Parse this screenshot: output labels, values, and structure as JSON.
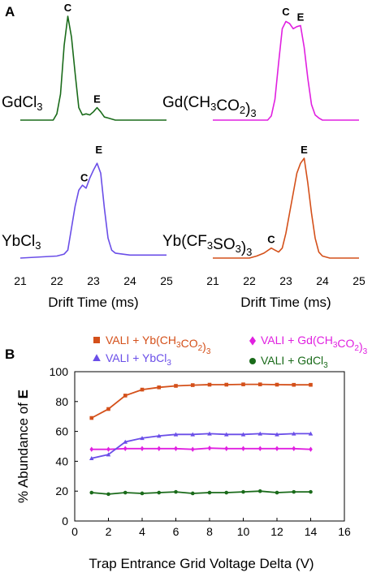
{
  "panel_a": {
    "letter": "A",
    "xaxis_title": "Drift Time (ms)",
    "xticks": [
      21,
      22,
      23,
      24,
      25
    ],
    "spectra": [
      {
        "name": "GdCl3",
        "label_parts": [
          {
            "t": "GdCl"
          },
          {
            "t": "3",
            "sub": true
          }
        ],
        "color": "#1a6b1a",
        "peaks": [
          {
            "label": "C",
            "x": 22.3,
            "y": 1.0
          },
          {
            "label": "E",
            "x": 23.1,
            "y": 0.12
          }
        ],
        "x": [
          21.0,
          21.9,
          22.0,
          22.1,
          22.2,
          22.3,
          22.4,
          22.5,
          22.6,
          22.7,
          22.8,
          22.9,
          23.0,
          23.1,
          23.2,
          23.3,
          23.4,
          23.6,
          24.0,
          25.0
        ],
        "y": [
          0.0,
          0.0,
          0.06,
          0.25,
          0.72,
          1.0,
          0.8,
          0.45,
          0.12,
          0.05,
          0.06,
          0.05,
          0.08,
          0.12,
          0.08,
          0.03,
          0.02,
          0.0,
          0.0,
          0.0
        ]
      },
      {
        "name": "Gd(CH3CO2)3",
        "label_parts": [
          {
            "t": "Gd(CH"
          },
          {
            "t": "3",
            "sub": true
          },
          {
            "t": "CO"
          },
          {
            "t": "2",
            "sub": true
          },
          {
            "t": ")"
          },
          {
            "t": "3",
            "sub": true
          }
        ],
        "color": "#e020e0",
        "peaks": [
          {
            "label": "C",
            "x": 23.0,
            "y": 0.96
          },
          {
            "label": "E",
            "x": 23.4,
            "y": 0.91
          }
        ],
        "x": [
          21.0,
          22.5,
          22.6,
          22.7,
          22.8,
          22.9,
          23.0,
          23.1,
          23.2,
          23.3,
          23.4,
          23.5,
          23.6,
          23.7,
          23.8,
          23.9,
          24.0,
          25.0
        ],
        "y": [
          0.0,
          0.0,
          0.04,
          0.2,
          0.55,
          0.88,
          0.95,
          0.93,
          0.88,
          0.9,
          0.91,
          0.7,
          0.4,
          0.15,
          0.05,
          0.02,
          0.0,
          0.0
        ]
      },
      {
        "name": "YbCl3",
        "label_parts": [
          {
            "t": "YbCl"
          },
          {
            "t": "3",
            "sub": true
          }
        ],
        "color": "#6a4ee8",
        "peaks": [
          {
            "label": "C",
            "x": 22.75,
            "y": 0.72
          },
          {
            "label": "E",
            "x": 23.15,
            "y": 1.0
          }
        ],
        "x": [
          21.0,
          22.0,
          22.2,
          22.3,
          22.4,
          22.5,
          22.6,
          22.7,
          22.8,
          22.9,
          23.0,
          23.1,
          23.2,
          23.3,
          23.4,
          23.5,
          23.6,
          24.0,
          25.0
        ],
        "y": [
          0.0,
          0.02,
          0.04,
          0.08,
          0.3,
          0.52,
          0.68,
          0.73,
          0.7,
          0.8,
          0.88,
          0.95,
          0.85,
          0.5,
          0.2,
          0.08,
          0.05,
          0.03,
          0.03
        ]
      },
      {
        "name": "Yb(CF3SO3)3",
        "label_parts": [
          {
            "t": "Yb(CF"
          },
          {
            "t": "3",
            "sub": true
          },
          {
            "t": "SO"
          },
          {
            "t": "3",
            "sub": true
          },
          {
            "t": ")"
          },
          {
            "t": "3",
            "sub": true
          }
        ],
        "color": "#d4501a",
        "peaks": [
          {
            "label": "C",
            "x": 22.6,
            "y": 0.1
          },
          {
            "label": "E",
            "x": 23.5,
            "y": 1.0
          }
        ],
        "x": [
          21.0,
          22.0,
          22.2,
          22.4,
          22.6,
          22.7,
          22.8,
          22.9,
          23.0,
          23.1,
          23.2,
          23.3,
          23.4,
          23.5,
          23.6,
          23.7,
          23.8,
          23.9,
          24.0,
          24.2,
          25.0
        ],
        "y": [
          0.0,
          0.0,
          0.02,
          0.05,
          0.1,
          0.08,
          0.06,
          0.1,
          0.25,
          0.45,
          0.65,
          0.85,
          0.95,
          1.0,
          0.75,
          0.45,
          0.2,
          0.06,
          0.02,
          0.0,
          0.0
        ]
      }
    ]
  },
  "panel_b": {
    "letter": "B",
    "ylabel_parts": [
      {
        "t": "% Abundance of "
      },
      {
        "t": "E",
        "bold": true
      }
    ],
    "xlabel": "Trap Entrance Grid Voltage Delta (V)",
    "legend": [
      {
        "name": "VALI + Yb(CH3CO2)3",
        "color": "#d4501a",
        "marker": "square",
        "label_parts": [
          {
            "t": "VALI + Yb(CH"
          },
          {
            "t": "3",
            "sub": true
          },
          {
            "t": "CO"
          },
          {
            "t": "2",
            "sub": true
          },
          {
            "t": ")"
          },
          {
            "t": "3",
            "sub": true
          }
        ]
      },
      {
        "name": "VALI + Gd(CH3CO2)3",
        "color": "#e020e0",
        "marker": "diamond",
        "label_parts": [
          {
            "t": "VALI + Gd(CH"
          },
          {
            "t": "3",
            "sub": true
          },
          {
            "t": "CO"
          },
          {
            "t": "2",
            "sub": true
          },
          {
            "t": ")"
          },
          {
            "t": "3",
            "sub": true
          }
        ]
      },
      {
        "name": "VALI + YbCl3",
        "color": "#6a4ee8",
        "marker": "triangle",
        "label_parts": [
          {
            "t": "VALI + YbCl"
          },
          {
            "t": "3",
            "sub": true
          }
        ]
      },
      {
        "name": "VALI + GdCl3",
        "color": "#1a6b1a",
        "marker": "circle",
        "label_parts": [
          {
            "t": "VALI + GdCl"
          },
          {
            "t": "3",
            "sub": true
          }
        ]
      }
    ]
  },
  "chart_data": [
    {
      "type": "line",
      "panel": "A",
      "xlabel": "Drift Time (ms)",
      "note": "four stacked drift-time spectra, x axis 21–25 ms, intensity normalized",
      "series_ref": "panel_a.spectra"
    },
    {
      "type": "line",
      "panel": "B",
      "xlabel": "Trap Entrance Grid Voltage Delta (V)",
      "ylabel": "% Abundance of E",
      "xlim": [
        0,
        16
      ],
      "ylim": [
        0,
        100
      ],
      "xticks": [
        0,
        2,
        4,
        6,
        8,
        10,
        12,
        14,
        16
      ],
      "yticks": [
        0,
        20,
        40,
        60,
        80,
        100
      ],
      "x": [
        1,
        2,
        3,
        4,
        5,
        6,
        7,
        8,
        9,
        10,
        11,
        12,
        13,
        14
      ],
      "series": [
        {
          "name": "VALI + Yb(CH3CO2)3",
          "color": "#d4501a",
          "marker": "square",
          "values": [
            69,
            75,
            84,
            88,
            89.5,
            90.5,
            91,
            91.3,
            91.3,
            91.5,
            91.5,
            91.3,
            91.2,
            91.2
          ]
        },
        {
          "name": "VALI + Gd(CH3CO2)3",
          "color": "#e020e0",
          "marker": "diamond",
          "values": [
            48,
            48,
            48.5,
            48.5,
            48.5,
            48.5,
            48,
            48.8,
            48.5,
            48.5,
            48.5,
            48.5,
            48.5,
            48
          ]
        },
        {
          "name": "VALI + YbCl3",
          "color": "#6a4ee8",
          "marker": "triangle",
          "values": [
            42,
            44.5,
            53,
            55.5,
            57,
            58,
            58,
            58.5,
            58,
            58,
            58.5,
            58,
            58.5,
            58.5
          ]
        },
        {
          "name": "VALI + GdCl3",
          "color": "#1a6b1a",
          "marker": "circle",
          "values": [
            19,
            18,
            19,
            18.5,
            19,
            19.5,
            18.5,
            19,
            19,
            19.5,
            20,
            19,
            19.5,
            19.5
          ]
        }
      ]
    }
  ]
}
